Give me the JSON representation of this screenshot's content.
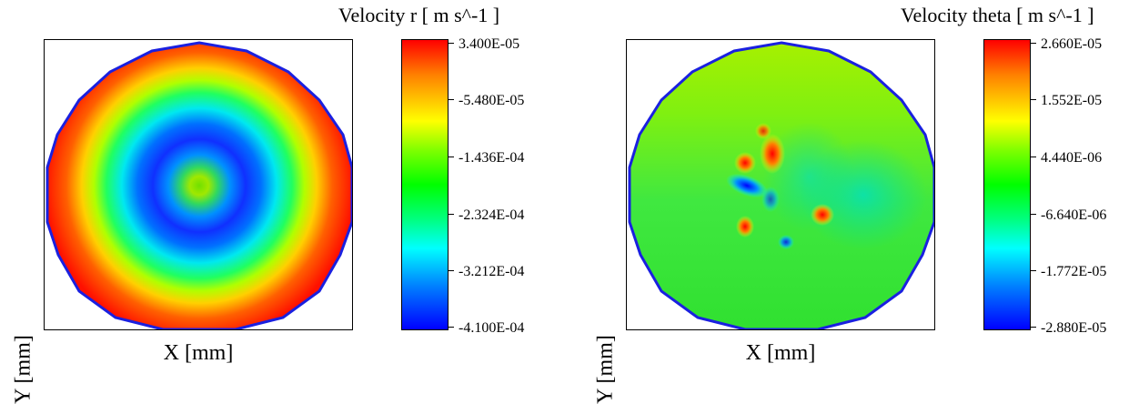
{
  "chart_data": [
    {
      "type": "heatmap",
      "title": "Velocity r [ m s^-1 ]",
      "xlabel": "X [mm]",
      "ylabel": "Y [mm]",
      "colorbar": {
        "min": -0.00041,
        "max": 3.4e-05,
        "tick_labels": [
          "3.400E-05",
          "-5.480E-05",
          "-1.436E-04",
          "-2.324E-04",
          "-3.212E-04",
          "-4.100E-04"
        ],
        "tick_values": [
          3.4e-05,
          -5.48e-05,
          -0.0001436,
          -0.0002324,
          -0.0003212,
          -0.00041
        ],
        "colormap": [
          "#0000ff",
          "#00ffff",
          "#00ff00",
          "#ffff00",
          "#ff0000"
        ]
      },
      "field": "concentric rings: red at rim, blue ring at mid radius, green center"
    },
    {
      "type": "heatmap",
      "title": "Velocity theta [ m s^-1 ]",
      "xlabel": "X [mm]",
      "ylabel": "Y [mm]",
      "colorbar": {
        "min": -2.88e-05,
        "max": 2.66e-05,
        "tick_labels": [
          "2.660E-05",
          "1.552E-05",
          "4.440E-06",
          "-6.640E-06",
          "-1.772E-05",
          "-2.880E-05"
        ],
        "tick_values": [
          2.66e-05,
          1.552e-05,
          4.44e-06,
          -6.64e-06,
          -1.772e-05,
          -2.88e-05
        ],
        "colormap": [
          "#0000ff",
          "#00ffff",
          "#00ff00",
          "#ffff00",
          "#ff0000"
        ]
      },
      "field": "mostly green with yellow-green top and scattered red/blue spots near center"
    }
  ]
}
